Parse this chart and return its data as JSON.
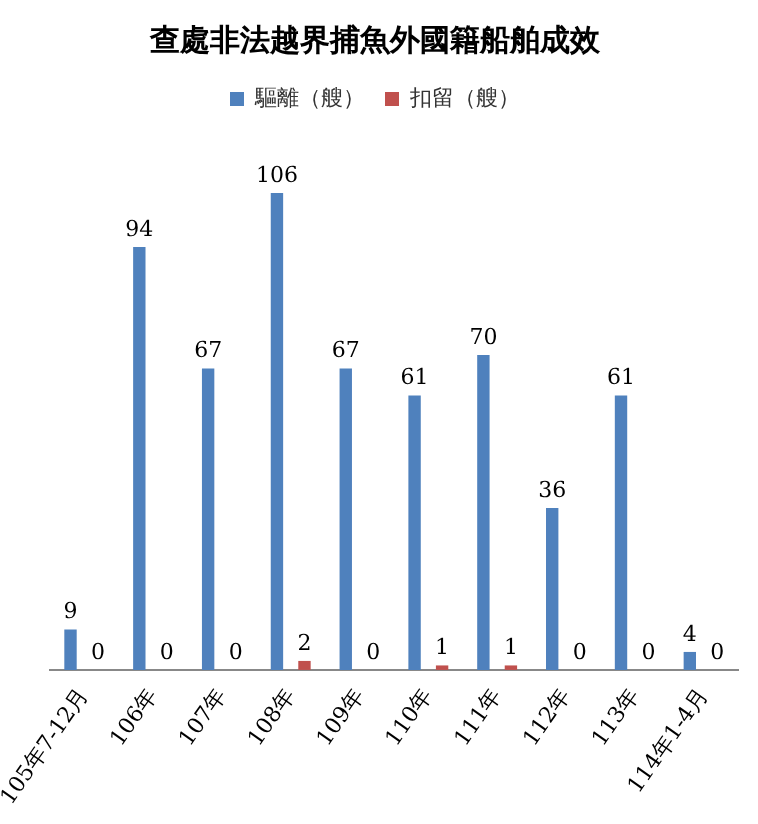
{
  "chart_data": {
    "type": "bar",
    "title": "查處非法越界捕魚外國籍船舶成效",
    "categories": [
      "105年7-12月",
      "106年",
      "107年",
      "108年",
      "109年",
      "110年",
      "111年",
      "112年",
      "113年",
      "114年1-4月"
    ],
    "series": [
      {
        "name": "驅離（艘）",
        "color": "#4f81bd",
        "values": [
          9,
          94,
          67,
          106,
          67,
          61,
          70,
          36,
          61,
          4
        ]
      },
      {
        "name": "扣留（艘）",
        "color": "#c0504d",
        "values": [
          0,
          0,
          0,
          2,
          0,
          1,
          1,
          0,
          0,
          0
        ]
      }
    ],
    "data_labels": true,
    "legend": "top",
    "grid": false
  }
}
